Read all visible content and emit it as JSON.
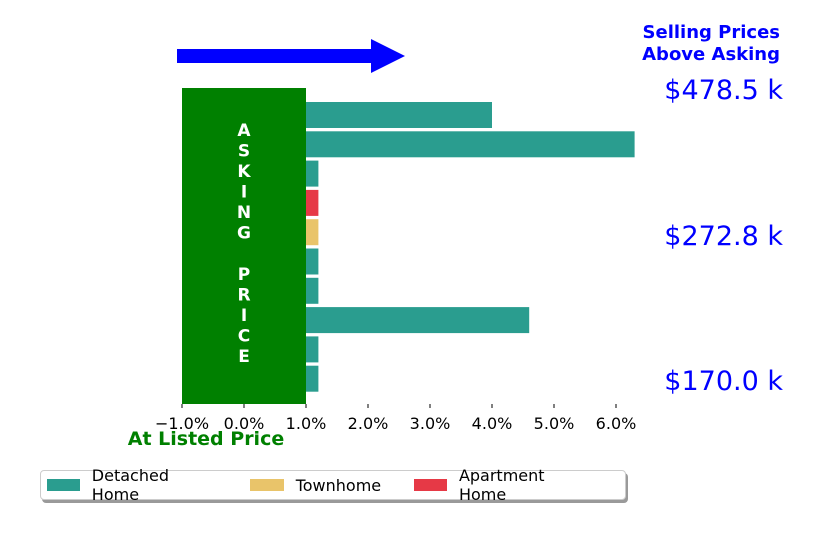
{
  "header": {
    "selling_line1": "Selling Prices",
    "selling_line2": "Above Asking"
  },
  "asking_price_label": "ASKING PRICE",
  "at_listed_price": "At Listed Price",
  "colors": {
    "detached": "#2a9d8f",
    "townhome": "#e9c46a",
    "apartment": "#e63946",
    "asking_box": "#008000",
    "arrow": "#0000ff",
    "price_text": "#0000ff",
    "at_listed_text": "#008000"
  },
  "legend": [
    {
      "label": "Detached Home",
      "color": "#2a9d8f"
    },
    {
      "label": "Townhome",
      "color": "#e9c46a"
    },
    {
      "label": "Apartment Home",
      "color": "#e63946"
    }
  ],
  "chart_data": {
    "type": "bar",
    "orientation": "horizontal",
    "xlim": [
      -1.0,
      6.0
    ],
    "xticks": [
      "−1.0%",
      "0.0%",
      "1.0%",
      "2.0%",
      "3.0%",
      "4.0%",
      "5.0%",
      "6.0%"
    ],
    "xtick_values": [
      -1,
      0,
      1,
      2,
      3,
      4,
      5,
      6
    ],
    "bars": [
      {
        "value": 4.0,
        "type": "Detached Home"
      },
      {
        "value": 6.3,
        "type": "Detached Home"
      },
      {
        "value": 1.2,
        "type": "Detached Home"
      },
      {
        "value": 1.2,
        "type": "Apartment Home"
      },
      {
        "value": 1.2,
        "type": "Townhome"
      },
      {
        "value": 1.2,
        "type": "Detached Home"
      },
      {
        "value": 1.2,
        "type": "Detached Home"
      },
      {
        "value": 4.6,
        "type": "Detached Home"
      },
      {
        "value": 1.2,
        "type": "Detached Home"
      },
      {
        "value": 1.2,
        "type": "Detached Home"
      }
    ],
    "price_labels": [
      "$478.5 k",
      "$272.8 k",
      "$170.0 k"
    ],
    "grid": false
  }
}
